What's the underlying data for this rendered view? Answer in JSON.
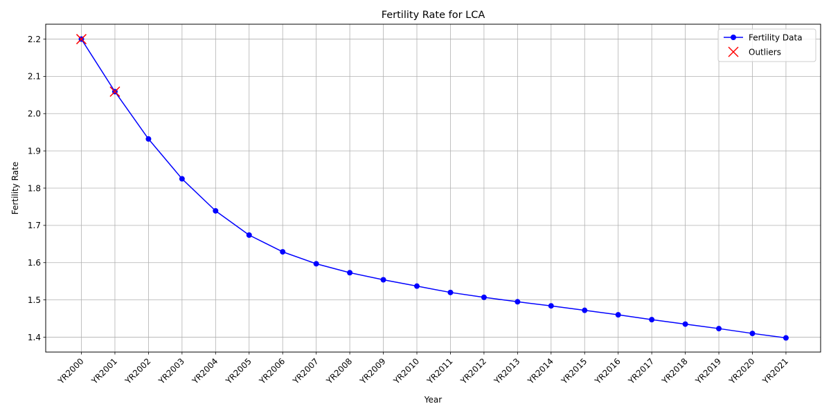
{
  "chart_data": {
    "type": "line",
    "title": "Fertility Rate for LCA",
    "xlabel": "Year",
    "ylabel": "Fertility Rate",
    "categories": [
      "YR2000",
      "YR2001",
      "YR2002",
      "YR2003",
      "YR2004",
      "YR2005",
      "YR2006",
      "YR2007",
      "YR2008",
      "YR2009",
      "YR2010",
      "YR2011",
      "YR2012",
      "YR2013",
      "YR2014",
      "YR2015",
      "YR2016",
      "YR2017",
      "YR2018",
      "YR2019",
      "YR2020",
      "YR2021"
    ],
    "series": [
      {
        "name": "Fertility Data",
        "color": "#0000ff",
        "marker": "circle",
        "values": [
          2.2,
          2.059,
          1.932,
          1.825,
          1.739,
          1.674,
          1.629,
          1.597,
          1.573,
          1.554,
          1.537,
          1.52,
          1.507,
          1.495,
          1.484,
          1.472,
          1.46,
          1.447,
          1.435,
          1.423,
          1.41,
          1.398
        ]
      },
      {
        "name": "Outliers",
        "color": "#ff0000",
        "marker": "x",
        "points": [
          {
            "x": "YR2000",
            "y": 2.2
          },
          {
            "x": "YR2001",
            "y": 2.059
          }
        ]
      }
    ],
    "ylim": [
      1.36,
      2.24
    ],
    "yticks": [
      1.4,
      1.5,
      1.6,
      1.7,
      1.8,
      1.9,
      2.0,
      2.1,
      2.2
    ],
    "ytick_labels": [
      "1.4",
      "1.5",
      "1.6",
      "1.7",
      "1.8",
      "1.9",
      "2.0",
      "2.1",
      "2.2"
    ],
    "grid": true,
    "legend_position": "top-right"
  }
}
